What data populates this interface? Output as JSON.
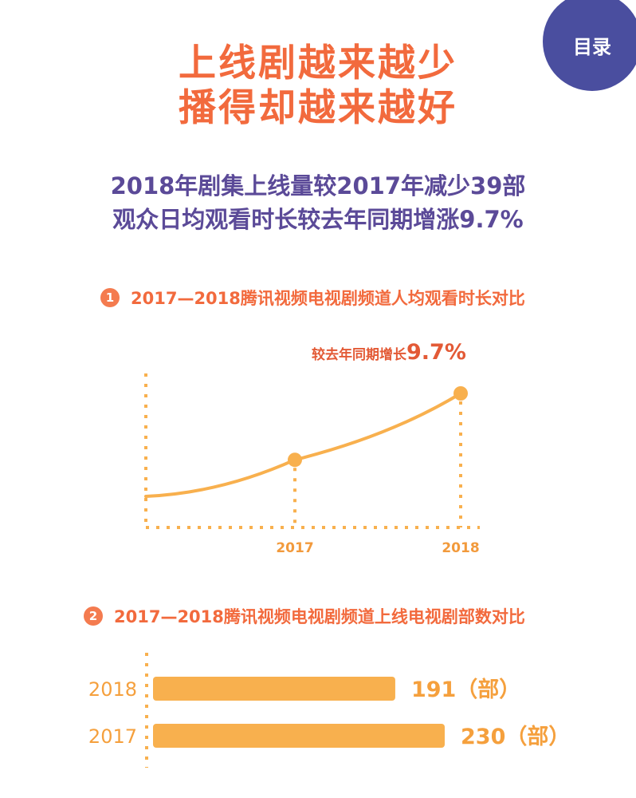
{
  "toc_button": "目录",
  "headline": {
    "line1": "上线剧越来越少",
    "line2": "播得却越来越好"
  },
  "subhead": {
    "line1": "2018年剧集上线量较2017年减少39部",
    "line2": "观众日均观看时长较去年同期增涨9.7%"
  },
  "sections": [
    {
      "number": "1",
      "title": "2017—2018腾讯视频电视剧频道人均观看时长对比"
    },
    {
      "number": "2",
      "title": "2017—2018腾讯视频电视剧频道上线电视剧部数对比"
    }
  ],
  "growth_note": {
    "prefix": "较去年同期增长",
    "value": "9.7%"
  },
  "colors": {
    "accent": "#f8b04e",
    "title": "#f26a3d",
    "subtitle": "#5b4a98",
    "toc": "#4a4e9f"
  },
  "chart_data": [
    {
      "type": "line",
      "title": "2017—2018腾讯视频电视剧频道人均观看时长对比",
      "x": [
        "2017",
        "2018"
      ],
      "series": [
        {
          "values": [
            1.0,
            1.097
          ]
        }
      ],
      "annotation": "较去年同期增长9.7%",
      "grid": false,
      "y_axis_labels": false
    },
    {
      "type": "bar",
      "orientation": "horizontal",
      "title": "2017—2018腾讯视频电视剧频道上线电视剧部数对比",
      "categories": [
        "2018",
        "2017"
      ],
      "values": [
        191,
        230
      ],
      "unit": "（部）",
      "value_labels": [
        "191（部）",
        "230（部）"
      ],
      "xlim": [
        0,
        230
      ]
    }
  ]
}
